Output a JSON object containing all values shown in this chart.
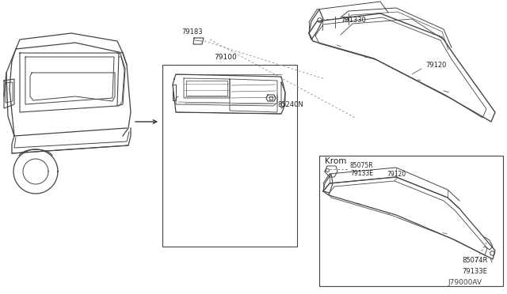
{
  "bg_color": "#ffffff",
  "line_color": "#444444",
  "diagram_id": "J79000AV",
  "krom_label": "Krom",
  "parts": {
    "main_panel": "79100",
    "bracket": "79183",
    "clip1": "85240N",
    "rear_beam_top": "79120",
    "clip_top_r": "79133E",
    "bolt_top": "85074R",
    "clip_top_l": "79133E",
    "bracket_top": "85075R",
    "rear_beam_bot": "79120",
    "bolt_bot": "791330"
  },
  "font_size_label": 6.0,
  "font_size_diagram_id": 6.5,
  "font_size_krom": 7.5
}
